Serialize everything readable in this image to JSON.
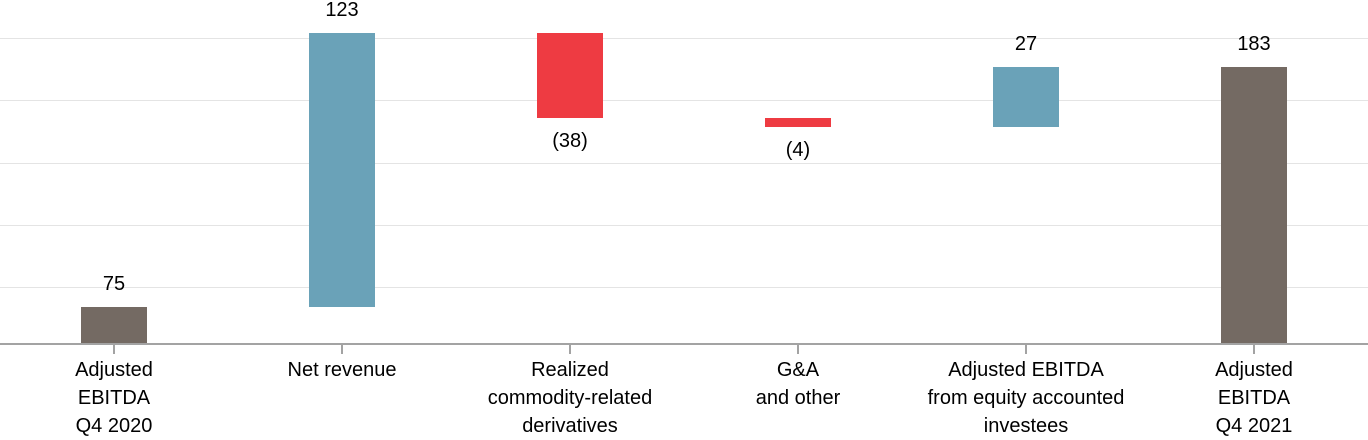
{
  "chart_data": {
    "type": "bar",
    "subtype": "waterfall",
    "title": "",
    "categories": [
      "Adjusted EBITDA Q4 2020",
      "Net revenue",
      "Realized commodity-related derivatives",
      "G&A and other",
      "Adjusted EBITDA from equity accounted investees",
      "Adjusted EBITDA Q4 2021"
    ],
    "values_delta": [
      75,
      123,
      -38,
      -4,
      27,
      183
    ],
    "bars": [
      {
        "label_lines": [
          "Adjusted",
          "EBITDA",
          "Q4 2020"
        ],
        "value_label": "75",
        "role": "total",
        "start": 0,
        "end": 75,
        "label_side": "above"
      },
      {
        "label_lines": [
          "Net revenue"
        ],
        "value_label": "123",
        "role": "increase",
        "start": 75,
        "end": 198,
        "label_side": "above"
      },
      {
        "label_lines": [
          "Realized",
          "commodity-related",
          "derivatives"
        ],
        "value_label": "(38)",
        "role": "decrease",
        "start": 198,
        "end": 160,
        "label_side": "below"
      },
      {
        "label_lines": [
          "G&A",
          "and other"
        ],
        "value_label": "(4)",
        "role": "decrease",
        "start": 160,
        "end": 156,
        "label_side": "below"
      },
      {
        "label_lines": [
          "Adjusted EBITDA",
          "from equity accounted",
          "investees"
        ],
        "value_label": "27",
        "role": "increase",
        "start": 156,
        "end": 183,
        "label_side": "above"
      },
      {
        "label_lines": [
          "Adjusted",
          "EBITDA",
          "Q4 2021"
        ],
        "value_label": "183",
        "role": "total",
        "start": 0,
        "end": 183,
        "label_side": "above"
      }
    ],
    "colors": {
      "increase": "#6AA2B8",
      "decrease": "#EE3B42",
      "total": "#746A63"
    },
    "value_axis": {
      "labels_visible": false,
      "visible_min": 58.8,
      "visible_max": 213,
      "gridline_values": [
        84,
        112,
        140,
        168,
        196
      ]
    },
    "layout": {
      "grid": true,
      "legend": false,
      "gridline_color": "#E4E4E4",
      "axis_line_color": "#A3A3A3",
      "tick_color": "#A3A3A3",
      "text_color": "#000000",
      "background": "#FFFFFF"
    }
  }
}
